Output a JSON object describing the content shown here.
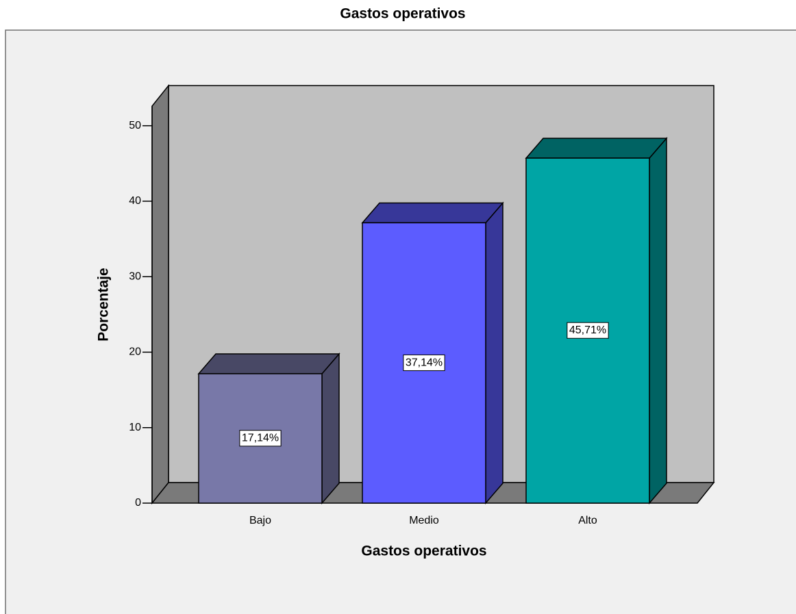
{
  "chart_data": {
    "type": "bar3d",
    "title": "Gastos operativos",
    "x_label": "Gastos operativos",
    "y_label": "Porcentaje",
    "categories": [
      "Bajo",
      "Medio",
      "Alto"
    ],
    "values": [
      17.14,
      37.14,
      45.71
    ],
    "value_labels": [
      "17,14%",
      "37,14%",
      "45,71%"
    ],
    "colors": [
      "#7878a8",
      "#5c5cff",
      "#00a5a5"
    ],
    "ylim": [
      0,
      52.6
    ],
    "yticks": [
      0,
      10,
      20,
      30,
      40,
      50
    ]
  }
}
